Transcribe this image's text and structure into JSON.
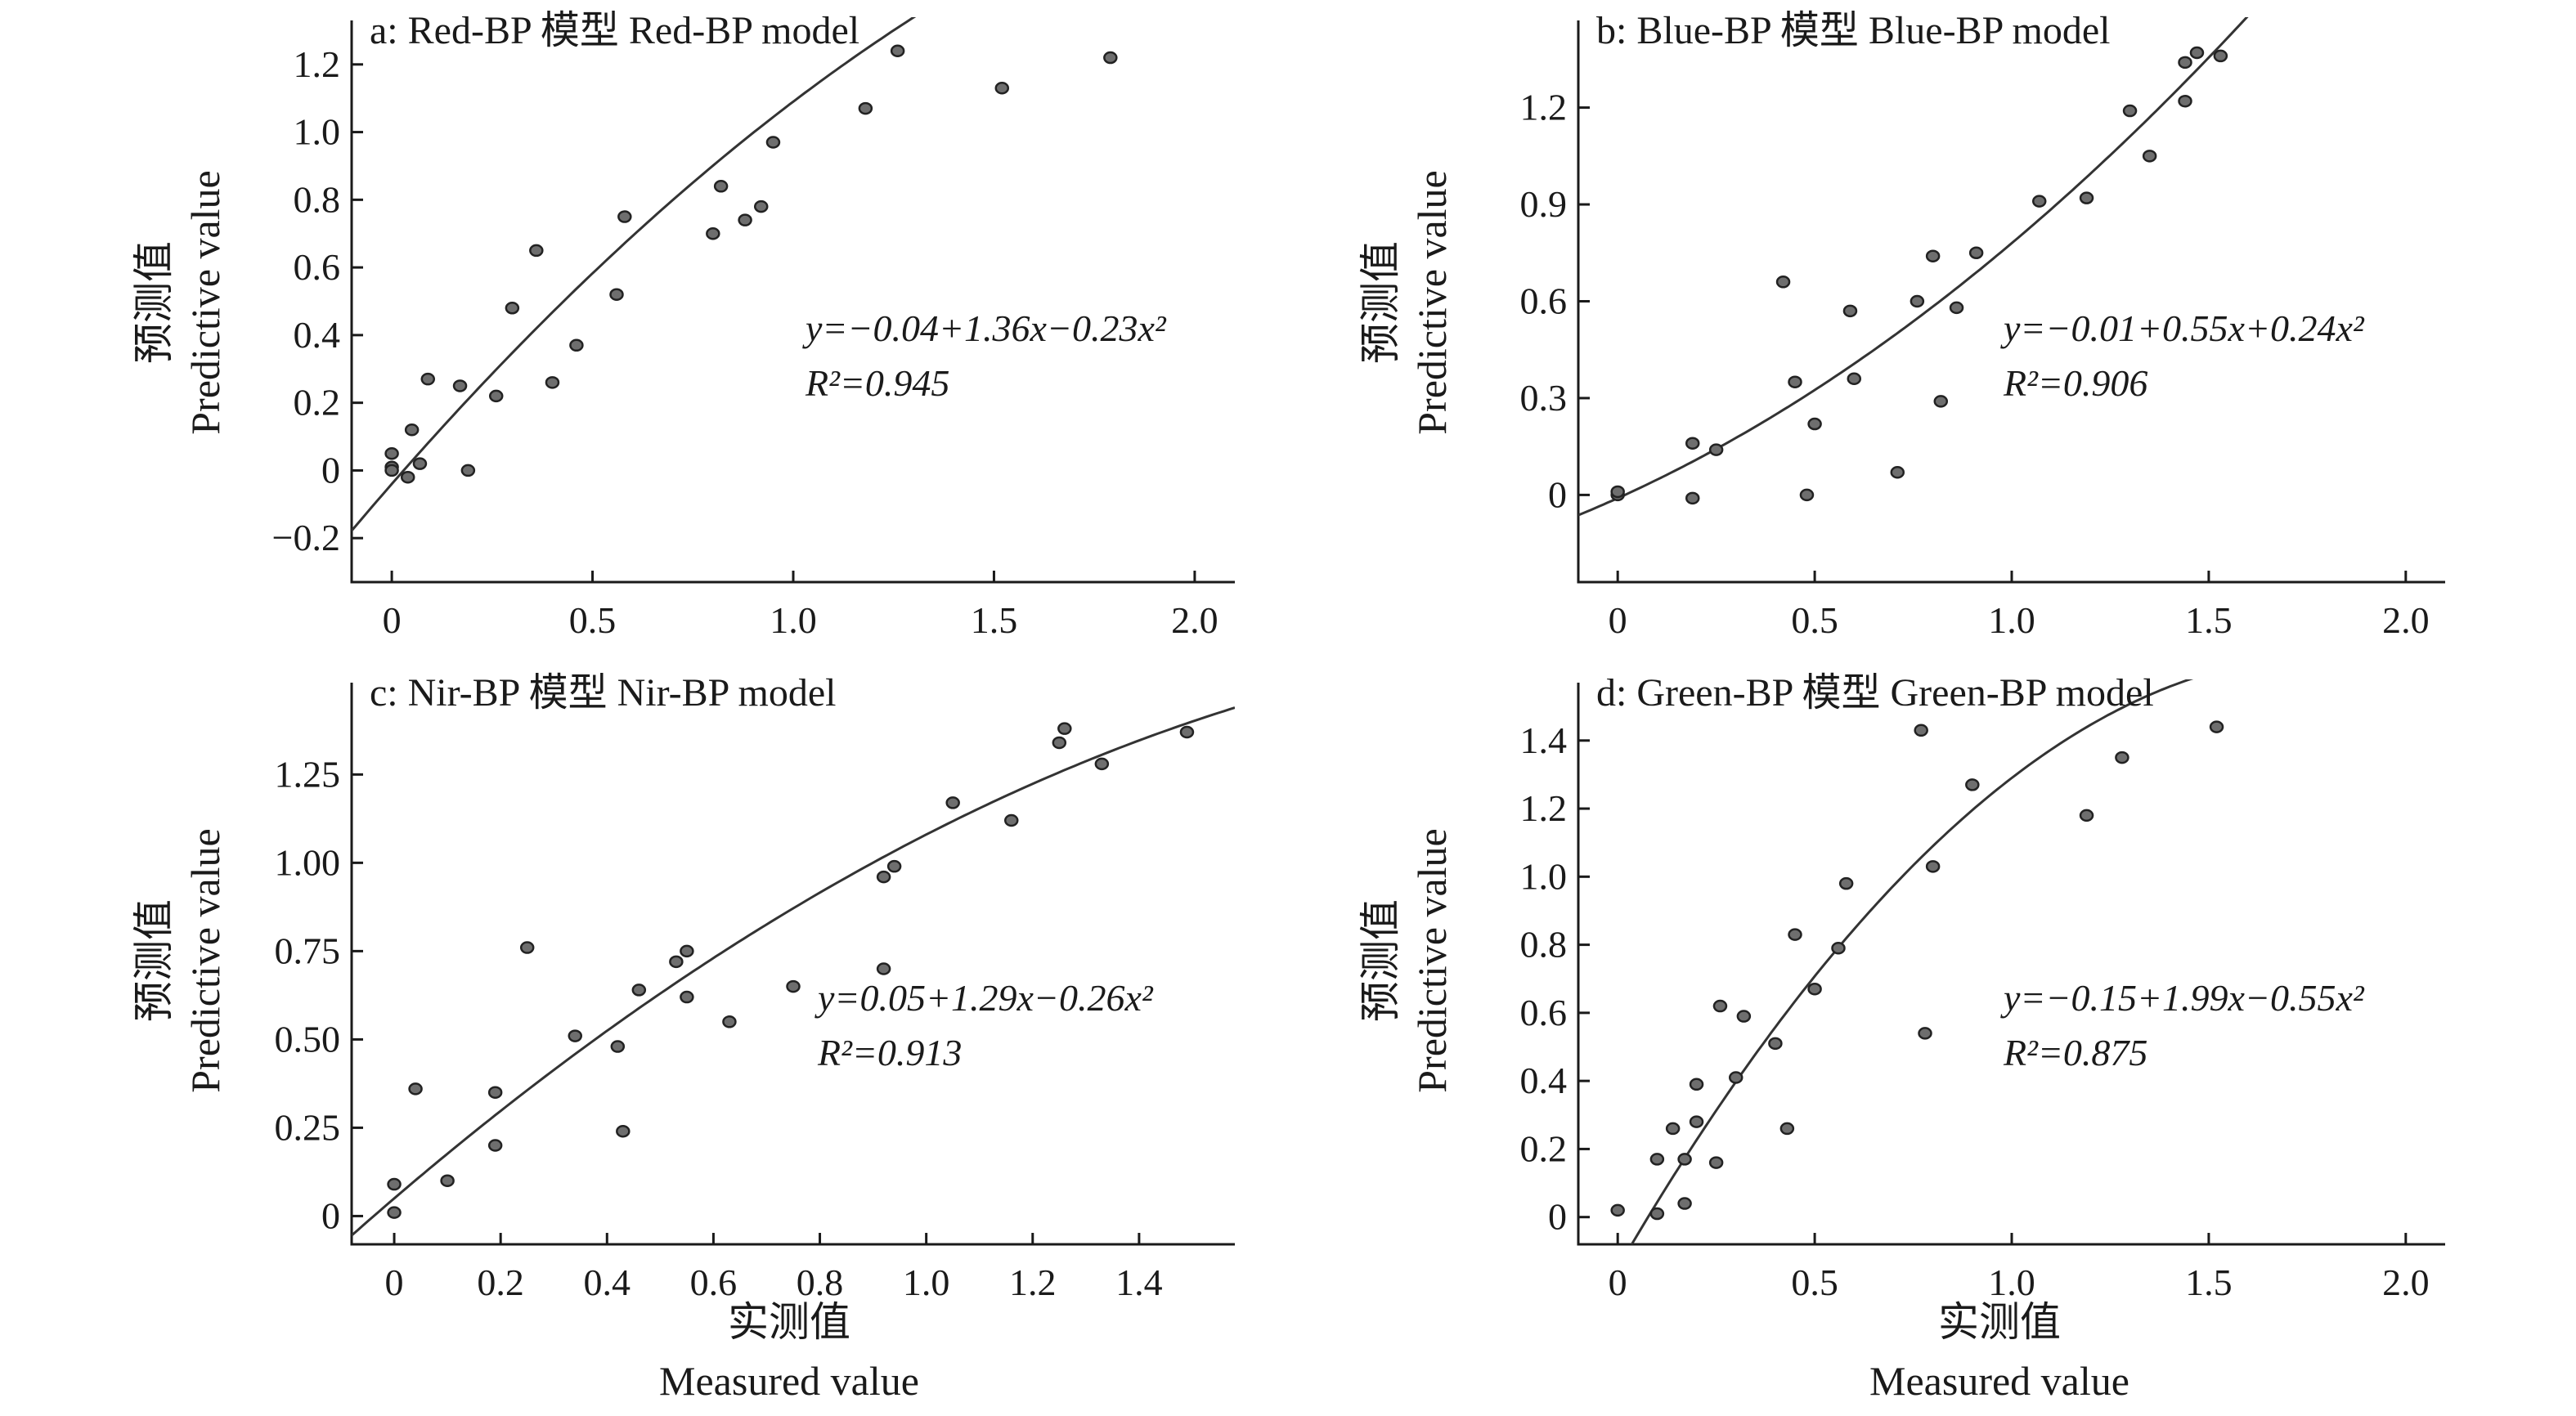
{
  "figure": {
    "xlabel_cn": "实测值",
    "xlabel_en": "Measured value",
    "ylabel_cn": "预测值",
    "ylabel_en": "Predictive value"
  },
  "chart_data": [
    {
      "type": "scatter",
      "title": "a: Red-BP 模型 Red-BP model",
      "xlim": [
        -0.1,
        2.1
      ],
      "ylim": [
        -0.33,
        1.33
      ],
      "xticks": [
        {
          "v": 0,
          "label": "0"
        },
        {
          "v": 0.5,
          "label": "0.5"
        },
        {
          "v": 1.0,
          "label": "1.0"
        },
        {
          "v": 1.5,
          "label": "1.5"
        },
        {
          "v": 2.0,
          "label": "2.0"
        }
      ],
      "yticks": [
        {
          "v": -0.2,
          "label": "−0.2"
        },
        {
          "v": 0,
          "label": "0"
        },
        {
          "v": 0.2,
          "label": "0.2"
        },
        {
          "v": 0.4,
          "label": "0.4"
        },
        {
          "v": 0.6,
          "label": "0.6"
        },
        {
          "v": 0.8,
          "label": "0.8"
        },
        {
          "v": 1.0,
          "label": "1.0"
        },
        {
          "v": 1.2,
          "label": "1.2"
        }
      ],
      "equation": "y=−0.04+1.36x−0.23x²",
      "r2": "R²=0.945",
      "fit": {
        "c0": -0.04,
        "c1": 1.36,
        "c2": -0.23,
        "xrange": [
          -0.1,
          1.93
        ]
      },
      "points": [
        [
          0,
          0.05
        ],
        [
          0,
          0.01
        ],
        [
          0,
          0.0
        ],
        [
          0.04,
          -0.02
        ],
        [
          0.05,
          0.12
        ],
        [
          0.07,
          0.02
        ],
        [
          0.09,
          0.27
        ],
        [
          0.17,
          0.25
        ],
        [
          0.19,
          0.0
        ],
        [
          0.26,
          0.22
        ],
        [
          0.3,
          0.48
        ],
        [
          0.36,
          0.65
        ],
        [
          0.4,
          0.26
        ],
        [
          0.46,
          0.37
        ],
        [
          0.56,
          0.52
        ],
        [
          0.58,
          0.75
        ],
        [
          0.8,
          0.7
        ],
        [
          0.82,
          0.84
        ],
        [
          0.88,
          0.74
        ],
        [
          0.92,
          0.78
        ],
        [
          0.95,
          0.97
        ],
        [
          1.18,
          1.07
        ],
        [
          1.26,
          1.24
        ],
        [
          1.52,
          1.13
        ],
        [
          1.79,
          1.22
        ]
      ]
    },
    {
      "type": "scatter",
      "title": "b: Blue-BP 模型 Blue-BP model",
      "xlim": [
        -0.1,
        2.1
      ],
      "ylim": [
        -0.27,
        1.47
      ],
      "xticks": [
        {
          "v": 0,
          "label": "0"
        },
        {
          "v": 0.5,
          "label": "0.5"
        },
        {
          "v": 1.0,
          "label": "1.0"
        },
        {
          "v": 1.5,
          "label": "1.5"
        },
        {
          "v": 2.0,
          "label": "2.0"
        }
      ],
      "yticks": [
        {
          "v": 0,
          "label": "0"
        },
        {
          "v": 0.3,
          "label": "0.3"
        },
        {
          "v": 0.6,
          "label": "0.6"
        },
        {
          "v": 0.9,
          "label": "0.9"
        },
        {
          "v": 1.2,
          "label": "1.2"
        }
      ],
      "equation": "y=−0.01+0.55x+0.24x²",
      "r2": "R²=0.906",
      "fit": {
        "c0": -0.01,
        "c1": 0.55,
        "c2": 0.24,
        "xrange": [
          -0.1,
          1.6
        ]
      },
      "points": [
        [
          0,
          0.0
        ],
        [
          0,
          0.01
        ],
        [
          0.19,
          0.16
        ],
        [
          0.19,
          -0.01
        ],
        [
          0.25,
          0.14
        ],
        [
          0.42,
          0.66
        ],
        [
          0.45,
          0.35
        ],
        [
          0.48,
          0.0
        ],
        [
          0.5,
          0.22
        ],
        [
          0.59,
          0.57
        ],
        [
          0.6,
          0.36
        ],
        [
          0.71,
          0.07
        ],
        [
          0.76,
          0.6
        ],
        [
          0.8,
          0.74
        ],
        [
          0.82,
          0.29
        ],
        [
          0.86,
          0.58
        ],
        [
          0.91,
          0.75
        ],
        [
          1.07,
          0.91
        ],
        [
          1.19,
          0.92
        ],
        [
          1.3,
          1.19
        ],
        [
          1.35,
          1.05
        ],
        [
          1.44,
          1.22
        ],
        [
          1.44,
          1.34
        ],
        [
          1.47,
          1.37
        ],
        [
          1.53,
          1.36
        ]
      ]
    },
    {
      "type": "scatter",
      "title": "c: Nir-BP 模型 Nir-BP model",
      "xlim": [
        -0.08,
        1.58
      ],
      "ylim": [
        -0.08,
        1.51
      ],
      "xticks": [
        {
          "v": 0,
          "label": "0"
        },
        {
          "v": 0.2,
          "label": "0.2"
        },
        {
          "v": 0.4,
          "label": "0.4"
        },
        {
          "v": 0.6,
          "label": "0.6"
        },
        {
          "v": 0.8,
          "label": "0.8"
        },
        {
          "v": 1.0,
          "label": "1.0"
        },
        {
          "v": 1.2,
          "label": "1.2"
        },
        {
          "v": 1.4,
          "label": "1.4"
        }
      ],
      "yticks": [
        {
          "v": 0,
          "label": "0"
        },
        {
          "v": 0.25,
          "label": "0.25"
        },
        {
          "v": 0.5,
          "label": "0.50"
        },
        {
          "v": 0.75,
          "label": "0.75"
        },
        {
          "v": 1.0,
          "label": "1.00"
        },
        {
          "v": 1.25,
          "label": "1.25"
        }
      ],
      "equation": "y=0.05+1.29x−0.26x²",
      "r2": "R²=0.913",
      "fit": {
        "c0": 0.05,
        "c1": 1.29,
        "c2": -0.26,
        "xrange": [
          -0.08,
          1.58
        ]
      },
      "points": [
        [
          0,
          0.09
        ],
        [
          0,
          0.01
        ],
        [
          0.04,
          0.36
        ],
        [
          0.1,
          0.1
        ],
        [
          0.19,
          0.35
        ],
        [
          0.19,
          0.2
        ],
        [
          0.25,
          0.76
        ],
        [
          0.34,
          0.51
        ],
        [
          0.42,
          0.48
        ],
        [
          0.43,
          0.24
        ],
        [
          0.46,
          0.64
        ],
        [
          0.53,
          0.72
        ],
        [
          0.55,
          0.75
        ],
        [
          0.55,
          0.62
        ],
        [
          0.63,
          0.55
        ],
        [
          0.75,
          0.65
        ],
        [
          0.92,
          0.7
        ],
        [
          0.92,
          0.96
        ],
        [
          0.94,
          0.99
        ],
        [
          1.05,
          1.17
        ],
        [
          1.16,
          1.12
        ],
        [
          1.25,
          1.34
        ],
        [
          1.26,
          1.38
        ],
        [
          1.33,
          1.28
        ],
        [
          1.49,
          1.37
        ]
      ]
    },
    {
      "type": "scatter",
      "title": "d: Green-BP 模型 Green-BP model",
      "xlim": [
        -0.1,
        2.1
      ],
      "ylim": [
        -0.08,
        1.57
      ],
      "xticks": [
        {
          "v": 0,
          "label": "0"
        },
        {
          "v": 0.5,
          "label": "0.5"
        },
        {
          "v": 1.0,
          "label": "1.0"
        },
        {
          "v": 1.5,
          "label": "1.5"
        },
        {
          "v": 2.0,
          "label": "2.0"
        }
      ],
      "yticks": [
        {
          "v": 0,
          "label": "0"
        },
        {
          "v": 0.2,
          "label": "0.2"
        },
        {
          "v": 0.4,
          "label": "0.4"
        },
        {
          "v": 0.6,
          "label": "0.6"
        },
        {
          "v": 0.8,
          "label": "0.8"
        },
        {
          "v": 1.0,
          "label": "1.0"
        },
        {
          "v": 1.2,
          "label": "1.2"
        },
        {
          "v": 1.4,
          "label": "1.4"
        }
      ],
      "equation": "y=−0.15+1.99x−0.55x²",
      "r2": "R²=0.875",
      "fit": {
        "c0": -0.15,
        "c1": 1.99,
        "c2": -0.55,
        "xrange": [
          0.03,
          1.83
        ]
      },
      "points": [
        [
          0,
          0.02
        ],
        [
          0.1,
          0.17
        ],
        [
          0.1,
          0.01
        ],
        [
          0.14,
          0.26
        ],
        [
          0.17,
          0.17
        ],
        [
          0.17,
          0.04
        ],
        [
          0.2,
          0.39
        ],
        [
          0.2,
          0.28
        ],
        [
          0.25,
          0.16
        ],
        [
          0.26,
          0.62
        ],
        [
          0.3,
          0.41
        ],
        [
          0.32,
          0.59
        ],
        [
          0.4,
          0.51
        ],
        [
          0.43,
          0.26
        ],
        [
          0.45,
          0.83
        ],
        [
          0.5,
          0.67
        ],
        [
          0.56,
          0.79
        ],
        [
          0.58,
          0.98
        ],
        [
          0.77,
          1.43
        ],
        [
          0.78,
          0.54
        ],
        [
          0.8,
          1.03
        ],
        [
          0.9,
          1.27
        ],
        [
          1.19,
          1.18
        ],
        [
          1.28,
          1.35
        ],
        [
          1.52,
          1.44
        ]
      ]
    }
  ]
}
